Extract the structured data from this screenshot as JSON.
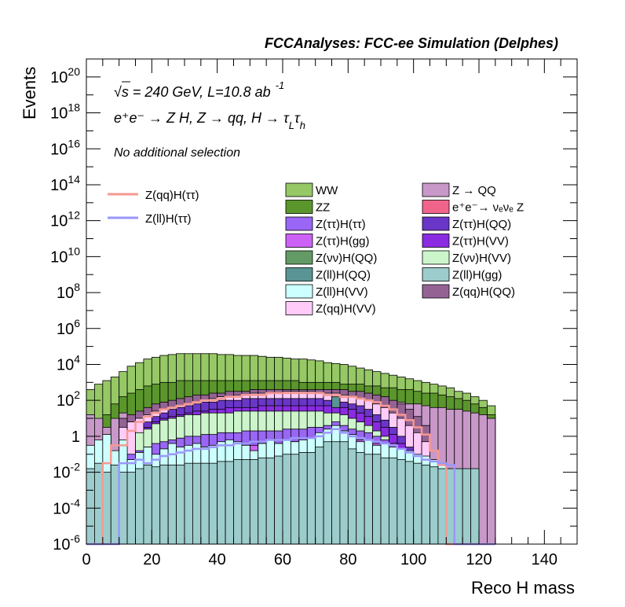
{
  "chart_data": {
    "type": "bar",
    "title": "FCCAnalyses: FCC-ee Simulation (Delphes)",
    "xlabel": "Reco H mass",
    "ylabel": "Events",
    "xlim": [
      0,
      150
    ],
    "ylim_exponent": [
      -6,
      21
    ],
    "log_y": true,
    "x_ticks": [
      "0",
      "20",
      "40",
      "60",
      "80",
      "100",
      "120",
      "140"
    ],
    "y_ticks": [
      {
        "base": "10",
        "exp": "-6"
      },
      {
        "base": "10",
        "exp": "-4"
      },
      {
        "base": "10",
        "exp": "-2"
      },
      {
        "base": "1",
        "exp": ""
      },
      {
        "base": "10",
        "exp": "2"
      },
      {
        "base": "10",
        "exp": "4"
      },
      {
        "base": "10",
        "exp": "6"
      },
      {
        "base": "10",
        "exp": "8"
      },
      {
        "base": "10",
        "exp": "10"
      },
      {
        "base": "10",
        "exp": "12"
      },
      {
        "base": "10",
        "exp": "14"
      },
      {
        "base": "10",
        "exp": "16"
      },
      {
        "base": "10",
        "exp": "18"
      },
      {
        "base": "10",
        "exp": "20"
      }
    ],
    "annotations": {
      "line1": "√s = 240 GeV, L=10.8 ab",
      "line1_sup": "-1",
      "line2": "e⁺e⁻ → Z H, Z → qq, H → τ",
      "line2_sub1": "L",
      "line2_tau": "τ",
      "line2_sub2": "h",
      "line3": "No additional selection"
    },
    "signal_legend": [
      {
        "name": "Z(qq)H(ττ)",
        "color": "#f69891"
      },
      {
        "name": "Z(ll)H(ττ)",
        "color": "#9a97fa"
      }
    ],
    "background_legend": [
      {
        "name": "WW",
        "color": "#96c866"
      },
      {
        "name": "Z → QQ",
        "color": "#c898c8"
      },
      {
        "name": "ZZ",
        "color": "#5a962c"
      },
      {
        "name": "e⁺e⁻→ νₑνₑ Z",
        "color": "#f0648c"
      },
      {
        "name": "Z(ττ)H(ττ)",
        "color": "#9966f5"
      },
      {
        "name": "Z(ττ)H(QQ)",
        "color": "#6a36c8"
      },
      {
        "name": "Z(ττ)H(gg)",
        "color": "#cc62f5"
      },
      {
        "name": "Z(ττ)H(VV)",
        "color": "#8a2be2"
      },
      {
        "name": "Z(νν)H(QQ)",
        "color": "#639a66"
      },
      {
        "name": "Z(νν)H(VV)",
        "color": "#ccf5cc"
      },
      {
        "name": "Z(ll)H(QQ)",
        "color": "#5a9494"
      },
      {
        "name": "Z(ll)H(gg)",
        "color": "#9ccccc"
      },
      {
        "name": "Z(ll)H(VV)",
        "color": "#ccffff"
      },
      {
        "name": "Z(qq)H(QQ)",
        "color": "#946394"
      },
      {
        "name": "Z(qq)H(VV)",
        "color": "#ffccfa"
      }
    ],
    "bin_width": 2.5,
    "series": [
      {
        "name": "Z(ll)H(gg)",
        "color": "#9ccccc",
        "values_log10": [
          -1.8,
          -1.5,
          -2,
          -1.6,
          -2,
          -2,
          -1.8,
          -1.6,
          -1.7,
          -1.6,
          -1.6,
          -1.6,
          -1.5,
          -1.5,
          -1.5,
          -1.5,
          -1.4,
          -1.4,
          -1.3,
          -1.3,
          -1.3,
          -1.2,
          -1.2,
          -1.1,
          -1.0,
          -1.0,
          -0.9,
          -0.9,
          -0.6,
          -0.3,
          -0.3,
          -0.3,
          -0.7,
          -0.9,
          -1.0,
          -1.0,
          -1.2,
          -1.2,
          -1.3,
          -1.4,
          -1.5,
          -1.6,
          -1.7,
          -1.8,
          -1.8,
          -1.8,
          -1.8,
          -1.8,
          -6,
          -6
        ]
      },
      {
        "name": "Z(ll)H(VV)",
        "color": "#ccffff",
        "values_log10": [
          -0.5,
          -0.2,
          0.1,
          -0.8,
          -0.2,
          -1.3,
          -0.9,
          -0.6,
          -1.0,
          -0.7,
          -0.4,
          -0.6,
          -0.5,
          -0.4,
          -0.6,
          -0.5,
          -0.3,
          -0.2,
          -0.3,
          -0.5,
          -0.8,
          -0.4,
          -0.2,
          -0.4,
          -0.2,
          -0.3,
          -0.2,
          -0.1,
          0.2,
          0.4,
          0.6,
          0.3,
          0.1,
          -0.3,
          -0.2,
          -0.5,
          -0.4,
          -0.6,
          -0.7,
          -0.8,
          -1.0,
          -1.1,
          -1.3,
          -1.5,
          -1.8,
          -2,
          -6,
          -6,
          -6,
          -6
        ]
      },
      {
        "name": "Z(νν)H(QQ)",
        "color": "#639a66",
        "values_log10": [
          -6,
          -2,
          -6,
          -6,
          -2.5,
          -6,
          -0.9,
          -1.5,
          -6,
          -6,
          -4,
          -6,
          -6,
          -6,
          -2,
          -1.7,
          -4.5,
          -6,
          -2.5,
          -6,
          -1.8,
          -1.2,
          -1.3,
          -6,
          -3,
          -6,
          -1.5,
          -1,
          -0.9,
          0.1,
          0.3,
          0.2,
          -0.5,
          -0.8,
          -1.2,
          -0.9,
          -1.5,
          -1.7,
          -2.2,
          -2.5,
          -3,
          -3.5,
          -4,
          -3,
          -3.5,
          -3.8,
          -3,
          -6,
          -6,
          -6
        ]
      },
      {
        "name": "Z(ττ)H(gg)",
        "color": "#cc62f5",
        "values_log10": [
          -6,
          -6,
          -6,
          -6,
          -6,
          -6,
          -6,
          -1.4,
          -1.1,
          -1.0,
          -1.0,
          -0.9,
          -0.8,
          -0.8,
          -0.7,
          -0.7,
          -0.6,
          -0.6,
          -0.5,
          -0.5,
          -0.5,
          -0.4,
          -0.4,
          -0.4,
          -0.3,
          -0.3,
          -0.3,
          -0.2,
          0.0,
          0.3,
          0.5,
          0.3,
          0.0,
          -0.2,
          -0.3,
          -0.4,
          -0.5,
          -0.7,
          -0.9,
          -1.2,
          -1.5,
          -6,
          -6,
          -6,
          -6,
          -6,
          -6,
          -6,
          -6,
          -6
        ]
      },
      {
        "name": "e⁺e⁻→ νₑνₑ Z",
        "color": "#f0648c",
        "values_log10": [
          -6,
          -6,
          -6,
          -6,
          -1.5,
          -1.6,
          -1.8,
          -6,
          -6,
          -6,
          -6,
          -1.4,
          -1.5,
          -6,
          -6,
          -6,
          -6,
          -6,
          -6,
          -6,
          -6,
          -6,
          -6,
          -6,
          -6,
          -6,
          -6,
          -6,
          -6,
          -6,
          -6,
          -6,
          -6,
          -6,
          -6,
          -6,
          -6,
          -6,
          -6,
          -6,
          -6,
          -6,
          -6,
          -6,
          -6,
          -6,
          -6,
          -6,
          -6,
          -6
        ]
      },
      {
        "name": "Z(ττ)H(ττ)",
        "color": "#9966f5",
        "values_log10": [
          -6,
          -6,
          -6,
          -6,
          -1.0,
          -1.0,
          -0.8,
          -0.6,
          -0.4,
          -0.3,
          -0.2,
          -0.1,
          0.0,
          0.0,
          0.1,
          0.1,
          0.2,
          0.2,
          0.2,
          0.3,
          0.3,
          0.3,
          0.3,
          0.3,
          0.4,
          0.4,
          0.4,
          0.5,
          0.5,
          0.6,
          0.8,
          0.6,
          0.4,
          0.3,
          0.2,
          0.0,
          -0.2,
          -0.4,
          -0.7,
          -1.0,
          -1.3,
          -1.8,
          -6,
          -6,
          -6,
          -6,
          -6,
          -6,
          -6,
          -6
        ]
      },
      {
        "name": "Z(νν)H(VV)",
        "color": "#ccf5cc",
        "values_log10": [
          -6,
          -6,
          -6,
          -6,
          -6,
          -6,
          0.2,
          0.4,
          0.7,
          0.9,
          1.0,
          1.1,
          1.2,
          1.2,
          1.3,
          1.3,
          1.3,
          1.3,
          1.4,
          1.4,
          1.4,
          1.4,
          1.4,
          1.4,
          1.4,
          1.4,
          1.4,
          1.4,
          1.4,
          1.3,
          1.3,
          1.2,
          1.0,
          0.8,
          0.6,
          0.3,
          0.0,
          -0.4,
          -0.9,
          -1.5,
          -6,
          -6,
          -6,
          -6,
          -6,
          -6,
          -6,
          -6,
          -6,
          -6
        ]
      },
      {
        "name": "Z(ττ)H(VV)",
        "color": "#8a2be2",
        "values_log10": [
          -6,
          -6,
          -6,
          -6,
          -6,
          -6,
          -6,
          0.5,
          0.8,
          1.0,
          1.1,
          1.2,
          1.3,
          1.4,
          1.4,
          1.5,
          1.5,
          1.6,
          1.6,
          1.6,
          1.6,
          1.7,
          1.7,
          1.7,
          1.7,
          1.7,
          1.7,
          1.7,
          1.7,
          1.7,
          1.6,
          1.6,
          1.5,
          1.3,
          1.1,
          0.8,
          0.5,
          0.1,
          -0.4,
          -1.0,
          -6,
          -6,
          -6,
          -6,
          -6,
          -6,
          -6,
          -6,
          -6,
          -6
        ]
      },
      {
        "name": "Z(ll)H(QQ)",
        "color": "#5a9494",
        "values_log10": [
          -6,
          -6,
          -6,
          -6,
          -6,
          -6,
          -6,
          -6,
          -6,
          -6,
          -6,
          -6,
          -6,
          -6,
          -6,
          -6,
          -6,
          -6,
          -6,
          -6,
          -6,
          -6,
          -6,
          -6,
          -6,
          -6,
          -6,
          -6,
          0.8,
          1.2,
          2.2,
          1.5,
          1.0,
          0.7,
          0.3,
          -0.5,
          -6,
          -6,
          -6,
          -6,
          -6,
          -6,
          -6,
          -6,
          -6,
          -6,
          -6,
          -6,
          -6,
          -6
        ]
      },
      {
        "name": "Z(ττ)H(QQ)",
        "color": "#6a36c8",
        "values_log10": [
          -6,
          -6,
          -6,
          -6,
          -6,
          -6,
          -6,
          0.8,
          1.1,
          1.3,
          1.5,
          1.6,
          1.7,
          1.8,
          1.9,
          1.9,
          2.0,
          2.0,
          2.0,
          2.1,
          2.1,
          2.1,
          2.1,
          2.1,
          2.1,
          2.1,
          2.1,
          2.1,
          2.1,
          2.0,
          2.0,
          1.9,
          1.8,
          1.7,
          1.5,
          1.2,
          0.9,
          0.5,
          0.0,
          -0.6,
          -6,
          -6,
          -6,
          -6,
          -6,
          -6,
          -6,
          -6,
          -6,
          -6
        ]
      },
      {
        "name": "Z(qq)H(VV)",
        "color": "#ffccfa",
        "values_log10": [
          -6,
          -6,
          -6,
          -6,
          0.5,
          0.8,
          1.0,
          1.2,
          1.4,
          1.5,
          1.6,
          1.7,
          1.8,
          1.9,
          2.0,
          2.1,
          2.2,
          2.2,
          2.3,
          2.3,
          2.4,
          2.4,
          2.4,
          2.4,
          2.5,
          2.5,
          2.5,
          2.5,
          2.4,
          2.4,
          2.4,
          2.3,
          2.2,
          2.1,
          2.0,
          1.8,
          1.6,
          1.3,
          1.0,
          0.6,
          0.2,
          -0.3,
          -6,
          -6,
          -6,
          -6,
          -6,
          -6,
          -6,
          -6
        ]
      },
      {
        "name": "Z(qq)H(QQ)",
        "color": "#946394",
        "values_log10": [
          -6,
          -6,
          -6,
          -6,
          1.0,
          1.2,
          1.4,
          1.6,
          1.8,
          1.9,
          2.0,
          2.1,
          2.2,
          2.3,
          2.3,
          2.4,
          2.4,
          2.5,
          2.5,
          2.5,
          2.6,
          2.6,
          2.6,
          2.6,
          2.6,
          2.6,
          2.6,
          2.6,
          2.6,
          2.6,
          2.6,
          2.6,
          2.5,
          2.5,
          2.4,
          2.3,
          2.2,
          2.0,
          1.8,
          1.5,
          1.1,
          0.6,
          -6,
          -6,
          -6,
          -6,
          -6,
          -6,
          -6,
          -6
        ]
      },
      {
        "name": "Z → QQ",
        "color": "#c898c8",
        "values_log10": [
          1.2,
          1.0,
          0.5,
          1.0,
          1.3,
          1.0,
          1.2,
          1.4,
          1.3,
          1.5,
          1.6,
          1.7,
          1.7,
          1.8,
          1.8,
          1.9,
          1.9,
          2.0,
          2.0,
          2.0,
          2.1,
          2.1,
          2.1,
          2.1,
          2.1,
          2.2,
          2.2,
          2.2,
          2.2,
          2.2,
          2.2,
          2.2,
          2.1,
          2.1,
          2.1,
          2.0,
          2.0,
          1.9,
          1.9,
          1.8,
          1.8,
          1.7,
          1.6,
          1.6,
          1.5,
          1.5,
          1.4,
          1.3,
          1.2,
          1.0
        ]
      },
      {
        "name": "ZZ",
        "color": "#5a962c",
        "values_log10": [
          1.0,
          0.8,
          1.2,
          1.8,
          2.2,
          2.4,
          2.6,
          2.8,
          2.9,
          3.0,
          3.0,
          3.1,
          3.1,
          3.1,
          3.1,
          3.1,
          3.1,
          3.1,
          3.1,
          3.1,
          3.1,
          3.1,
          3.1,
          3.1,
          3.1,
          3.1,
          3.0,
          3.0,
          3.0,
          3.0,
          3.0,
          2.9,
          2.9,
          2.9,
          2.8,
          2.8,
          2.7,
          2.7,
          2.6,
          2.6,
          2.5,
          2.4,
          2.4,
          2.3,
          2.2,
          2.1,
          2.0,
          1.8,
          1.6,
          1.2
        ]
      },
      {
        "name": "WW",
        "color": "#96c866",
        "values_log10": [
          2.6,
          2.9,
          3.1,
          3.3,
          3.6,
          3.9,
          4.1,
          4.3,
          4.4,
          4.5,
          4.55,
          4.6,
          4.6,
          4.6,
          4.6,
          4.6,
          4.55,
          4.55,
          4.5,
          4.5,
          4.5,
          4.45,
          4.4,
          4.4,
          4.35,
          4.3,
          4.3,
          4.25,
          4.2,
          4.1,
          4.05,
          4.0,
          3.9,
          3.8,
          3.7,
          3.6,
          3.5,
          3.4,
          3.3,
          3.2,
          3.1,
          3.0,
          2.9,
          2.8,
          2.7,
          2.5,
          2.4,
          2.2,
          2.0,
          1.7
        ]
      }
    ],
    "signal_series": [
      {
        "name": "Z(qq)H(ττ)",
        "color": "#f69891",
        "values_log10": [
          -6,
          -6,
          -1.5,
          -0.5,
          -0.5,
          0.3,
          0.8,
          1.1,
          1.3,
          1.5,
          1.6,
          1.7,
          1.8,
          1.9,
          2.0,
          2.0,
          2.1,
          2.2,
          2.2,
          2.3,
          2.3,
          2.3,
          2.4,
          2.4,
          2.4,
          2.4,
          2.4,
          2.4,
          2.4,
          2.3,
          2.3,
          2.2,
          2.2,
          2.1,
          2.0,
          1.9,
          1.7,
          1.5,
          1.2,
          0.9,
          0.5,
          0.1,
          -0.8,
          -1.6,
          -6,
          -6,
          -6,
          -6,
          -6,
          -6
        ]
      },
      {
        "name": "Z(ll)H(ττ)",
        "color": "#9a97fa",
        "values_log10": [
          -6,
          -6,
          -6,
          -6,
          -1.5,
          -1.5,
          -1.3,
          -1.5,
          -1.3,
          -1.1,
          -1.0,
          -0.9,
          -0.8,
          -0.7,
          -0.7,
          -0.6,
          -0.5,
          -0.5,
          -0.4,
          -0.4,
          -0.3,
          -0.3,
          -0.2,
          -0.2,
          -0.2,
          -0.1,
          -0.1,
          -0.1,
          0.0,
          0.2,
          0.4,
          0.2,
          0.0,
          -0.1,
          -0.2,
          -0.3,
          -0.4,
          -0.5,
          -0.7,
          -0.9,
          -1.1,
          -1.3,
          -1.4,
          -1.5,
          -1.6,
          -6,
          -6,
          -6,
          -6,
          -6
        ]
      }
    ]
  }
}
